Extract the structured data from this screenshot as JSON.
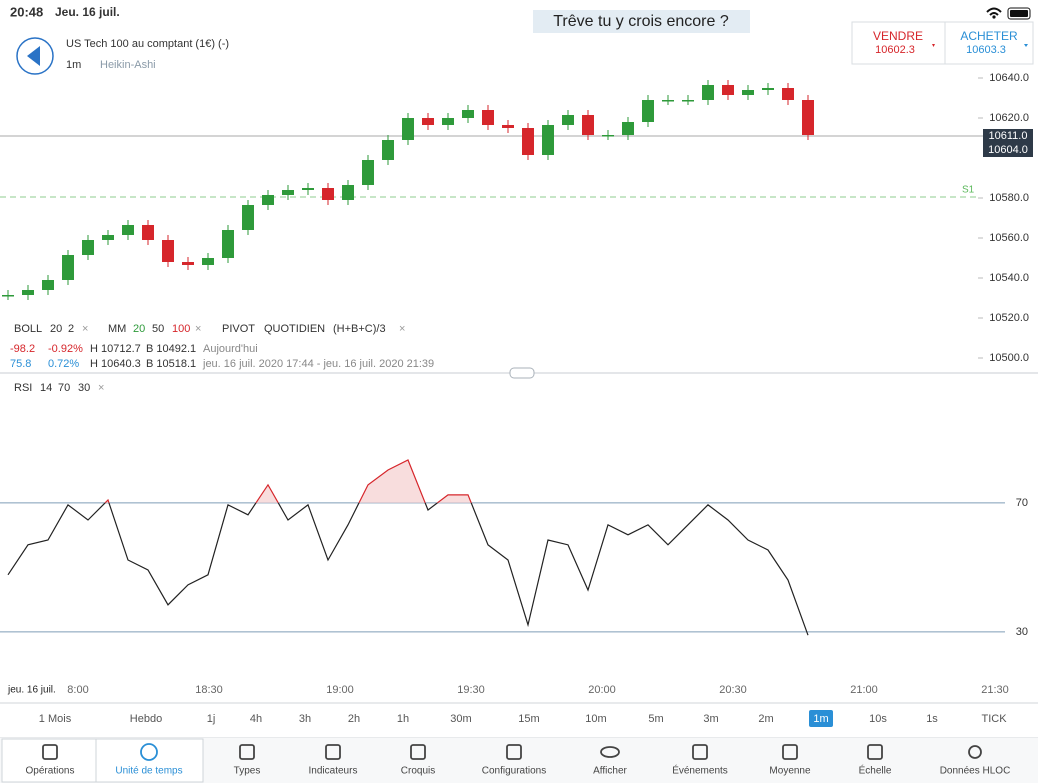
{
  "status": {
    "time": "20:48",
    "date": "Jeu. 16 juil."
  },
  "caption": "Trêve tu y crois encore ?",
  "instrument": {
    "name": "US Tech 100 au comptant (1€) (-)",
    "interval": "1m",
    "chart_type": "Heikin-Ashi"
  },
  "sell": {
    "label": "VENDRE",
    "price": "10602.3"
  },
  "buy": {
    "label": "ACHETER",
    "price": "10603.3"
  },
  "price_chart": {
    "type": "candlestick",
    "ylim": [
      10494,
      10664
    ],
    "yticks": [
      {
        "value": 10640,
        "label": "10640.0"
      },
      {
        "value": 10620,
        "label": "10620.0"
      },
      {
        "value": 10580,
        "label": "10580.0"
      },
      {
        "value": 10560,
        "label": "10560.0"
      },
      {
        "value": 10540,
        "label": "10540.0"
      },
      {
        "value": 10520,
        "label": "10520.0"
      },
      {
        "value": 10500,
        "label": "10500.0"
      }
    ],
    "price_tags": [
      {
        "value": 10611,
        "label": "10611.0"
      },
      {
        "value": 10604,
        "label": "10604.0"
      }
    ],
    "pivot_s1": {
      "value": 10580.5,
      "label": "S1"
    },
    "values": [
      10531.5,
      10534,
      10539,
      10551.5,
      10559,
      10561.5,
      10566.5,
      10559,
      10548,
      10546.5,
      10550,
      10564,
      10576.5,
      10581.5,
      10584,
      10585,
      10579,
      10586.5,
      10599,
      10609,
      10620,
      10616.5,
      10620,
      10624,
      10616.5,
      10615,
      10601.5,
      10616.5,
      10621.5,
      10611.5,
      10611.5,
      10618,
      10629,
      10629,
      10629,
      10636.5,
      10631.5,
      10634,
      10635,
      10629,
      10611.5
    ],
    "up_color": "#2e9a3a",
    "down_color": "#d6262b"
  },
  "legend": {
    "boll": [
      "BOLL",
      "20",
      "2"
    ],
    "mm": [
      "MM",
      "20",
      "50",
      "100"
    ],
    "pivot": [
      "PIVOT",
      "QUOTIDIEN",
      "(H+B+C)/3"
    ],
    "row1": [
      "-98.2",
      "-0.92%",
      "H 10712.7",
      "B 10492.1",
      "Aujourd'hui"
    ],
    "row2": [
      "75.8",
      "0.72%",
      "H 10640.3",
      "B 10518.1",
      "jeu. 16 juil. 2020 17:44 - jeu. 16 juil. 2020 21:39"
    ]
  },
  "rsi_chart": {
    "type": "line",
    "legend": [
      "RSI",
      "14",
      "70",
      "30"
    ],
    "ylim": [
      15.1,
      101.9
    ],
    "yticks": [
      30,
      70
    ],
    "values": [
      47.7,
      57,
      58.5,
      69.4,
      64.7,
      70.9,
      52.3,
      49.2,
      38.4,
      44.6,
      47.7,
      69.4,
      66.3,
      75.6,
      64.7,
      69.4,
      52.3,
      63.2,
      75.6,
      80.2,
      83.3,
      67.8,
      72.5,
      72.5,
      57,
      52.3,
      32.2,
      58.5,
      57,
      43,
      63.2,
      60.1,
      63.2,
      57,
      63.2,
      69.4,
      64.7,
      58.5,
      55.4,
      46.1,
      29
    ],
    "color": "#222222",
    "overbought_color": "#d6262b"
  },
  "time_axis": {
    "date": "jeu. 16 juil.",
    "labels": [
      "8:00",
      "18:30",
      "19:00",
      "19:30",
      "20:00",
      "20:30",
      "21:00",
      "21:30"
    ]
  },
  "timeframes": {
    "items": [
      "1 Mois",
      "Hebdo",
      "1j",
      "4h",
      "3h",
      "2h",
      "1h",
      "30m",
      "15m",
      "10m",
      "5m",
      "3m",
      "2m",
      "1m",
      "10s",
      "1s",
      "TICK"
    ],
    "active": "1m"
  },
  "toolbar": {
    "items": [
      "Opérations",
      "Unité de temps",
      "Types",
      "Indicateurs",
      "Croquis",
      "Configurations",
      "Afficher",
      "Événements",
      "Moyenne",
      "Échelle",
      "Données HLOC"
    ],
    "active": "Unité de temps"
  }
}
